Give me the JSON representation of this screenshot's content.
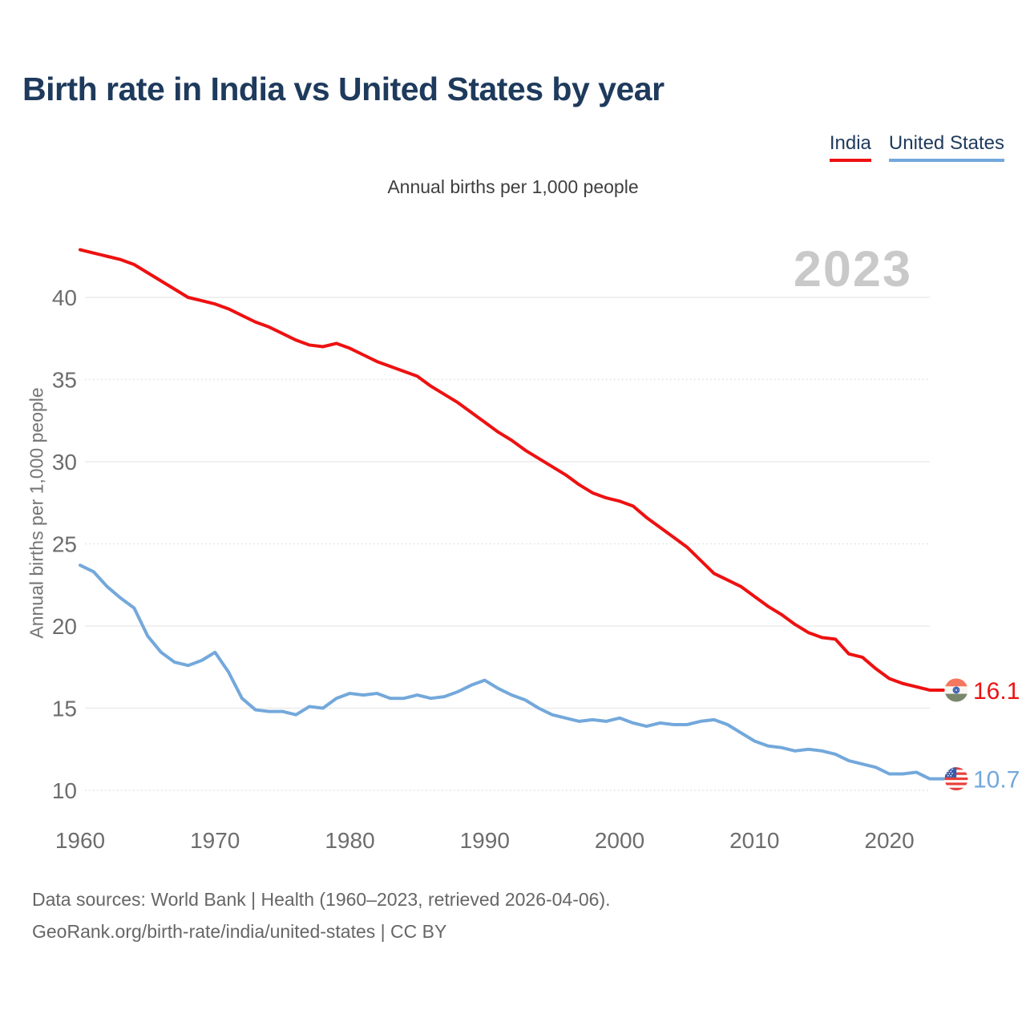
{
  "page": {
    "background": "#ffffff",
    "accent_text_color": "#1e3a5c"
  },
  "header": {
    "title": "Birth rate in India vs United States by year",
    "legend": [
      {
        "label": "India",
        "color": "#ee1111"
      },
      {
        "label": "United States",
        "color": "#73a8db"
      }
    ]
  },
  "subtitle": "Annual births per 1,000 people",
  "watermark": "2023",
  "icons": {
    "india_flag": "india-flag-icon",
    "us_flag": "us-flag-icon"
  },
  "chart_data": {
    "type": "line",
    "title": "Birth rate in India vs United States by year",
    "subtitle": "Annual births per 1,000 people",
    "xlabel": "",
    "ylabel": "Annual births per 1,000 people",
    "ylim": [
      10,
      43.5
    ],
    "yticks": [
      10,
      15,
      20,
      25,
      30,
      35,
      40
    ],
    "xticks": [
      1960,
      1970,
      1980,
      1990,
      2000,
      2010,
      2020
    ],
    "grid": true,
    "legend_position": "top-right",
    "x": [
      1960,
      1961,
      1962,
      1963,
      1964,
      1965,
      1966,
      1967,
      1968,
      1969,
      1970,
      1971,
      1972,
      1973,
      1974,
      1975,
      1976,
      1977,
      1978,
      1979,
      1980,
      1981,
      1982,
      1983,
      1984,
      1985,
      1986,
      1987,
      1988,
      1989,
      1990,
      1991,
      1992,
      1993,
      1994,
      1995,
      1996,
      1997,
      1998,
      1999,
      2000,
      2001,
      2002,
      2003,
      2004,
      2005,
      2006,
      2007,
      2008,
      2009,
      2010,
      2011,
      2012,
      2013,
      2014,
      2015,
      2016,
      2017,
      2018,
      2019,
      2020,
      2021,
      2022,
      2023
    ],
    "series": [
      {
        "name": "India",
        "color": "#ee1111",
        "end_label": "16.1",
        "end_flag": "india-flag-icon",
        "values": [
          42.9,
          42.7,
          42.5,
          42.3,
          42.0,
          41.5,
          41.0,
          40.5,
          40.0,
          39.8,
          39.6,
          39.3,
          38.9,
          38.5,
          38.2,
          37.8,
          37.4,
          37.1,
          37.0,
          37.2,
          36.9,
          36.5,
          36.1,
          35.8,
          35.5,
          35.2,
          34.6,
          34.1,
          33.6,
          33.0,
          32.4,
          31.8,
          31.3,
          30.7,
          30.2,
          29.7,
          29.2,
          28.6,
          28.1,
          27.8,
          27.6,
          27.3,
          26.6,
          26.0,
          25.4,
          24.8,
          24.0,
          23.2,
          22.8,
          22.4,
          21.8,
          21.2,
          20.7,
          20.1,
          19.6,
          19.3,
          19.2,
          18.3,
          18.1,
          17.4,
          16.8,
          16.5,
          16.3,
          16.1
        ]
      },
      {
        "name": "United States",
        "color": "#73a8db",
        "end_label": "10.7",
        "end_flag": "us-flag-icon",
        "values": [
          23.7,
          23.3,
          22.4,
          21.7,
          21.1,
          19.4,
          18.4,
          17.8,
          17.6,
          17.9,
          18.4,
          17.2,
          15.6,
          14.9,
          14.8,
          14.8,
          14.6,
          15.1,
          15.0,
          15.6,
          15.9,
          15.8,
          15.9,
          15.6,
          15.6,
          15.8,
          15.6,
          15.7,
          16.0,
          16.4,
          16.7,
          16.2,
          15.8,
          15.5,
          15.0,
          14.6,
          14.4,
          14.2,
          14.3,
          14.2,
          14.4,
          14.1,
          13.9,
          14.1,
          14.0,
          14.0,
          14.2,
          14.3,
          14.0,
          13.5,
          13.0,
          12.7,
          12.6,
          12.4,
          12.5,
          12.4,
          12.2,
          11.8,
          11.6,
          11.4,
          11.0,
          11.0,
          11.1,
          10.7
        ]
      }
    ]
  },
  "footer": {
    "line1": "Data sources: World Bank | Health (1960–2023, retrieved 2026-04-06).",
    "line2": "GeoRank.org/birth-rate/india/united-states | CC BY"
  }
}
